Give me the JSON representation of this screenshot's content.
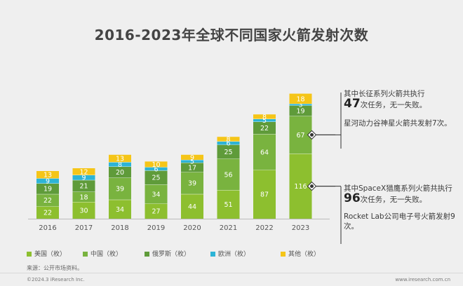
{
  "title": "2016-2023年全球不同国家火箭发射次数",
  "chart_data": {
    "type": "stacked-bar",
    "categories": [
      "2016",
      "2017",
      "2018",
      "2019",
      "2020",
      "2021",
      "2022",
      "2023"
    ],
    "series": [
      {
        "name": "美国（枚）",
        "color": "#8dbf2f",
        "values": [
          22,
          30,
          34,
          27,
          44,
          51,
          87,
          116
        ]
      },
      {
        "name": "中国（枚）",
        "color": "#79b33f",
        "values": [
          22,
          18,
          39,
          34,
          39,
          56,
          64,
          67
        ]
      },
      {
        "name": "俄罗斯（枚）",
        "color": "#5f9b3a",
        "values": [
          19,
          21,
          20,
          25,
          17,
          25,
          22,
          19
        ]
      },
      {
        "name": "欧洲（枚）",
        "color": "#2db4d6",
        "values": [
          9,
          9,
          8,
          6,
          5,
          6,
          5,
          3
        ]
      },
      {
        "name": "其他（枚）",
        "color": "#f5c518",
        "values": [
          13,
          12,
          13,
          10,
          9,
          8,
          8,
          18
        ]
      }
    ],
    "ylim": [
      0,
      250
    ]
  },
  "annotations": {
    "note1_a": "其中长征系列火箭共执行",
    "note1_num": "47",
    "note1_b": "次任务，无一失败。",
    "note1_c": "星河动力谷神星火箭共发射7次。",
    "note2_a": "其中SpaceX猎鹰系列火箭共执行",
    "note2_num": "96",
    "note2_b": "次任务，无一失败。",
    "note2_c": "Rocket Lab公司电子号火箭发射9次。"
  },
  "source": "来源：公开市场资料。",
  "copyright": "©2024.3 iResearch Inc.",
  "website": "www.iresearch.com.cn"
}
